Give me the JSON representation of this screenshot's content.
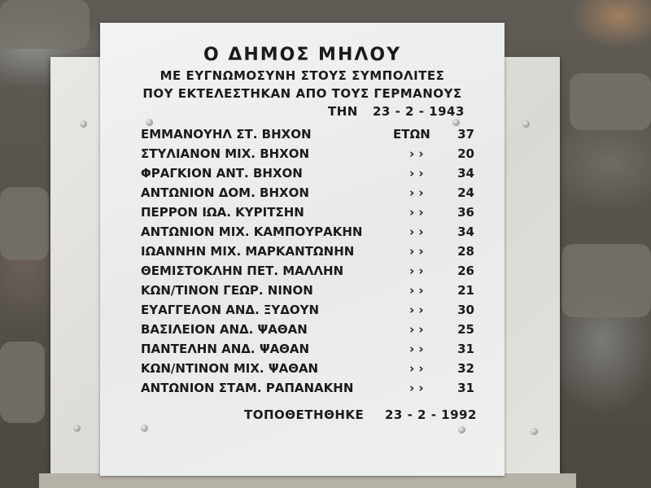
{
  "plaque": {
    "title": "Ο ΔΗΜΟΣ ΜΗΛΟΥ",
    "subtitle_1": "ΜΕ ΕΥΓΝΩΜΟΣΥΝΗ ΣΤΟΥΣ ΣΥΜΠΟΛΙΤΕΣ",
    "subtitle_2": "ΠΟΥ ΕΚΤΕΛΕΣΤΗΚΑΝ ΑΠΟ ΤΟΥΣ ΓΕΡΜΑΝΟΥΣ",
    "date_prefix": "ΤΗΝ",
    "date": "23 - 2 - 1943",
    "names": [
      {
        "name": "ΕΜΜΑΝΟΥΗΛ ΣΤ. ΒΗΧΟΝ",
        "ditto": "ΕΤΩΝ",
        "age": "37"
      },
      {
        "name": "ΣΤΥΛΙΑΝΟΝ ΜΙΧ. ΒΗΧΟΝ",
        "ditto": "› ›",
        "age": "20"
      },
      {
        "name": "ΦΡΑΓΚΙΟΝ ΑΝΤ. ΒΗΧΟΝ",
        "ditto": "› ›",
        "age": "34"
      },
      {
        "name": "ΑΝΤΩΝΙΟΝ ΔΟΜ. ΒΗΧΟΝ",
        "ditto": "› ›",
        "age": "24"
      },
      {
        "name": "ΠΕΡΡΟΝ ΙΩΑ. ΚΥΡΙΤΣΗΝ",
        "ditto": "› ›",
        "age": "36"
      },
      {
        "name": "ΑΝΤΩΝΙΟΝ ΜΙΧ. ΚΑΜΠΟΥΡΑΚΗΝ",
        "ditto": "› ›",
        "age": "34"
      },
      {
        "name": "ΙΩΑΝΝΗΝ ΜΙΧ. ΜΑΡΚΑΝΤΩΝΗΝ",
        "ditto": "› ›",
        "age": "28"
      },
      {
        "name": "ΘΕΜΙΣΤΟΚΛΗΝ ΠΕΤ. ΜΑΛΛΗΝ",
        "ditto": "› ›",
        "age": "26"
      },
      {
        "name": "ΚΩΝ/ΤΙΝΟΝ ΓΕΩΡ. ΝΙΝΟΝ",
        "ditto": "› ›",
        "age": "21"
      },
      {
        "name": "ΕΥΑΓΓΕΛΟΝ ΑΝΔ. ΞΥΔΟΥΝ",
        "ditto": "› ›",
        "age": "30"
      },
      {
        "name": "ΒΑΣΙΛΕΙΟΝ ΑΝΔ. ΨΑΘΑΝ",
        "ditto": "› ›",
        "age": "25"
      },
      {
        "name": "ΠΑΝΤΕΛΗΝ ΑΝΔ. ΨΑΘΑΝ",
        "ditto": "› ›",
        "age": "31"
      },
      {
        "name": "ΚΩΝ/ΝΤΙΝΟΝ ΜΙΧ. ΨΑΘΑΝ",
        "ditto": "› ›",
        "age": "32"
      },
      {
        "name": "ΑΝΤΩΝΙΟΝ ΣΤΑΜ. ΡΑΠΑΝΑΚΗΝ",
        "ditto": "› ›",
        "age": "31"
      }
    ],
    "footer_label": "ΤΟΠΟΘΕΤΗΘΗΚΕ",
    "footer_date": "23 - 2 - 1992"
  }
}
